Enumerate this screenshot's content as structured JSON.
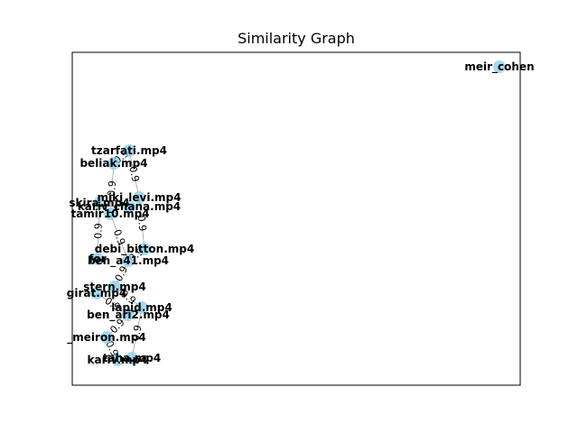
{
  "title": "Similarity Graph",
  "nodes": [
    {
      "id": "meir_cohen",
      "label": "meir_cohen"
    },
    {
      "id": "tzarfati",
      "label": "tzarfati.mp4"
    },
    {
      "id": "beliak",
      "label": "beliak.mp4"
    },
    {
      "id": "miki_levi",
      "label": "miki_levi.mp4"
    },
    {
      "id": "kariv_chana",
      "label": "kariv_chana.mp4"
    },
    {
      "id": "skira",
      "label": "skira.mp4"
    },
    {
      "id": "tamir",
      "label": "tamir10.mp4"
    },
    {
      "id": "debi_bitton",
      "label": "debi_bitton.mp4"
    },
    {
      "id": "ben_a",
      "label": "ben_a41.mp4"
    },
    {
      "id": "for",
      "label": "for"
    },
    {
      "id": "stern",
      "label": "stern.mp4"
    },
    {
      "id": "girat",
      "label": "girat.mp4"
    },
    {
      "id": "lapid",
      "label": "lapid.mp4"
    },
    {
      "id": "ben_ari2",
      "label": "ben_ari2.mp4"
    },
    {
      "id": "meiron",
      "label": "_meiron.mp4"
    },
    {
      "id": "taha",
      "label": "taha.mp4"
    },
    {
      "id": "kariv",
      "label": "kariv.mp4"
    }
  ],
  "edges": [
    {
      "source": "tzarfati",
      "target": "beliak",
      "weight": "0.9"
    },
    {
      "source": "tzarfati",
      "target": "miki_levi",
      "weight": "0.9"
    },
    {
      "source": "beliak",
      "target": "tamir",
      "weight": "0.9"
    },
    {
      "source": "miki_levi",
      "target": "debi_bitton",
      "weight": "0.9"
    },
    {
      "source": "tamir",
      "target": "ben_a",
      "weight": "0.9"
    },
    {
      "source": "skira",
      "target": "for",
      "weight": "0.9"
    },
    {
      "source": "debi_bitton",
      "target": "ben_a",
      "weight": "0.9"
    },
    {
      "source": "ben_a",
      "target": "stern",
      "weight": "0.9"
    },
    {
      "source": "stern",
      "target": "lapid",
      "weight": "0.9"
    },
    {
      "source": "girat",
      "target": "ben_ari2",
      "weight": "0.9"
    },
    {
      "source": "ben_ari2",
      "target": "meiron",
      "weight": "0.9"
    },
    {
      "source": "lapid",
      "target": "taha",
      "weight": "0.9"
    },
    {
      "source": "meiron",
      "target": "kariv",
      "weight": "0.9"
    }
  ]
}
